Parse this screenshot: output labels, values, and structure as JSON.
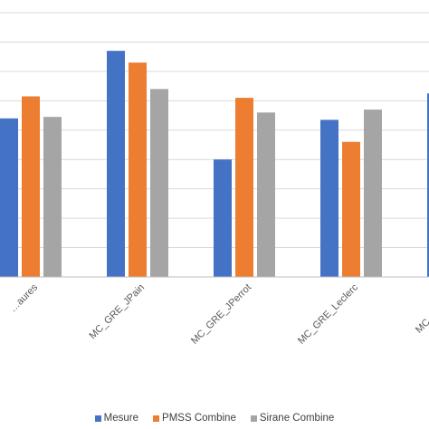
{
  "chart_data": {
    "type": "bar",
    "categories": [
      "…aures",
      "MC_GRE_JPain",
      "MC_GRE_JPerrot",
      "MC_GRE_Leclerc",
      "MC_GRE_V…"
    ],
    "series": [
      {
        "name": "Mesure",
        "color": "#4472C4",
        "values": [
          5.4,
          7.7,
          4.0,
          5.35,
          6.25
        ]
      },
      {
        "name": "PMSS Combine",
        "color": "#ED7D31",
        "values": [
          6.15,
          7.3,
          6.1,
          4.6,
          null
        ]
      },
      {
        "name": "Sirane Combine",
        "color": "#A5A5A5",
        "values": [
          5.45,
          6.4,
          5.6,
          5.7,
          null
        ]
      }
    ],
    "ylim": [
      0,
      9
    ],
    "grid": true,
    "legend_position": "bottom",
    "title": "",
    "xlabel": "",
    "ylabel": ""
  }
}
